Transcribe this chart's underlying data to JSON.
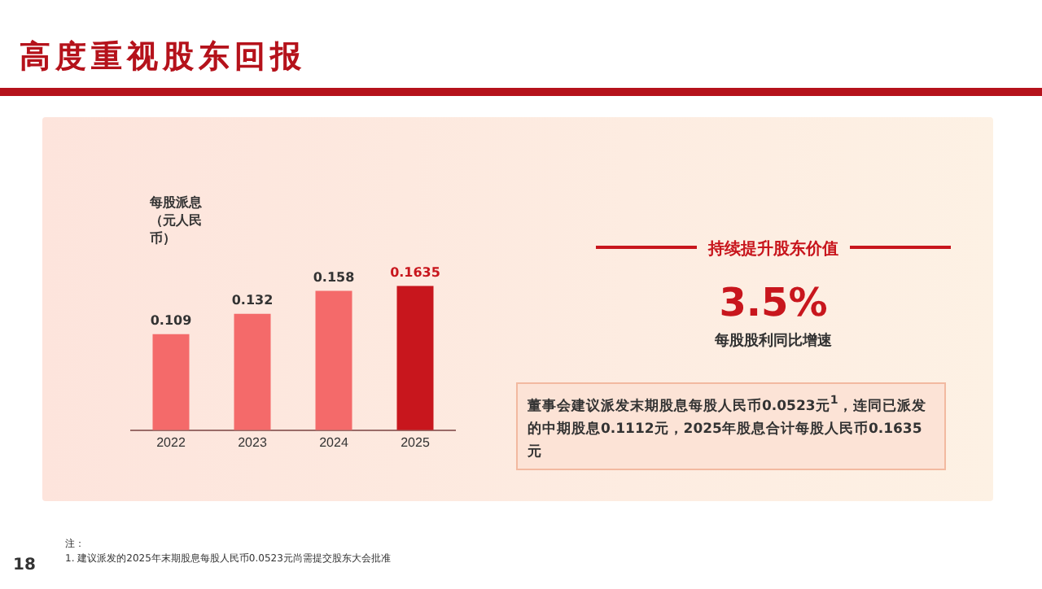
{
  "chart_data": {
    "type": "bar",
    "title": "高度重视股东回报",
    "ylabel": "每股派息（元人民币）",
    "categories": [
      "2022",
      "2023",
      "2024",
      "2025"
    ],
    "values": [
      0.109,
      0.132,
      0.158,
      0.1635
    ],
    "colors": [
      "#f46a6a",
      "#f46a6a",
      "#f46a6a",
      "#c8161d"
    ],
    "tick_labels": "x",
    "grid": false,
    "legend": false,
    "data_labels": true,
    "annotations": [
      "持续提升股东价值",
      "3.5%",
      "每股股利同比增速",
      "董事会建议派发末期股息每股人民币0.0523元$^{1}$，连同已派发的中期股息0.1112元，2025年股息合计每股人民币0.1635元",
      "注：",
      "1. 建议派发的2025年末期股息每股人民币0.0523元尚需提交股东大会批准",
      "18"
    ]
  }
}
